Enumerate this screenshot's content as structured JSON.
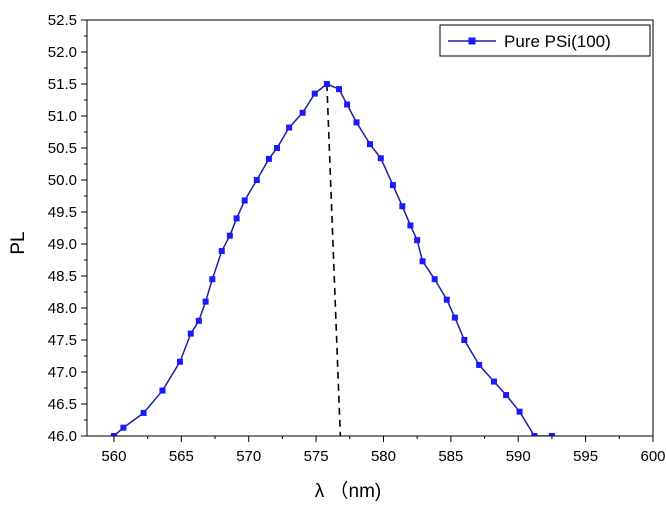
{
  "chart_data": {
    "type": "line",
    "xlabel": "λ （nm)",
    "ylabel": "PL",
    "xlim": [
      558,
      600
    ],
    "ylim": [
      46.0,
      52.5
    ],
    "x_ticks": [
      560,
      565,
      570,
      575,
      580,
      585,
      590,
      595,
      600
    ],
    "x_tick_labels": [
      "560",
      "565",
      "570",
      "575",
      "580",
      "585",
      "590",
      "595",
      "600"
    ],
    "y_ticks": [
      46.0,
      46.5,
      47.0,
      47.5,
      48.0,
      48.5,
      49.0,
      49.5,
      50.0,
      50.5,
      51.0,
      51.5,
      52.0,
      52.5
    ],
    "y_tick_labels": [
      "46.0",
      "46.5",
      "47.0",
      "47.5",
      "48.0",
      "48.5",
      "49.0",
      "49.5",
      "50.0",
      "50.5",
      "51.0",
      "51.5",
      "52.0",
      "52.5"
    ],
    "grid": false,
    "legend": {
      "position": "top-right"
    },
    "series": [
      {
        "name": "Pure PSi(100)",
        "color": "#1a1aff",
        "line_color": "#1f1f9e",
        "marker": "square",
        "x": [
          560.0,
          560.7,
          562.2,
          563.6,
          564.9,
          565.7,
          566.3,
          566.8,
          567.3,
          568.0,
          568.6,
          569.1,
          569.7,
          570.6,
          571.5,
          572.1,
          573.0,
          574.0,
          574.9,
          575.8,
          576.7,
          577.3,
          578.0,
          579.0,
          579.8,
          580.7,
          581.4,
          582.0,
          582.5,
          582.9,
          583.8,
          584.7,
          585.3,
          586.0,
          587.1,
          588.2,
          589.1,
          590.1,
          591.2,
          592.5
        ],
        "y": [
          46.0,
          46.13,
          46.36,
          46.71,
          47.16,
          47.6,
          47.8,
          48.1,
          48.45,
          48.89,
          49.13,
          49.4,
          49.68,
          50.0,
          50.33,
          50.5,
          50.82,
          51.05,
          51.35,
          51.5,
          51.42,
          51.18,
          50.9,
          50.56,
          50.34,
          49.92,
          49.59,
          49.29,
          49.06,
          48.73,
          48.45,
          48.13,
          47.85,
          47.5,
          47.11,
          46.85,
          46.64,
          46.38,
          46.0,
          46.0
        ]
      }
    ],
    "annotations": [
      {
        "type": "dashed-line",
        "x1": 575.8,
        "y1": 51.5,
        "x2": 576.8,
        "y2": 46.0
      }
    ]
  }
}
